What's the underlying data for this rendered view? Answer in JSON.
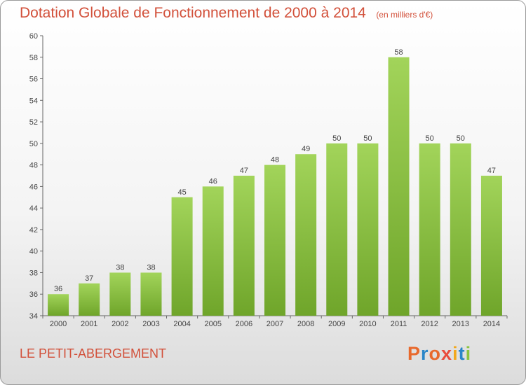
{
  "chart_data": {
    "type": "bar",
    "title": "Dotation Globale de Fonctionnement de 2000 à 2014",
    "subtitle": "(en milliers d'€)",
    "categories": [
      "2000",
      "2001",
      "2002",
      "2003",
      "2004",
      "2005",
      "2006",
      "2007",
      "2008",
      "2009",
      "2010",
      "2011",
      "2012",
      "2013",
      "2014"
    ],
    "values": [
      36,
      37,
      38,
      38,
      45,
      46,
      47,
      48,
      49,
      50,
      50,
      58,
      50,
      50,
      47
    ],
    "ylim": [
      34,
      60
    ],
    "yticks": [
      34,
      36,
      38,
      40,
      42,
      44,
      46,
      48,
      50,
      52,
      54,
      56,
      58,
      60
    ],
    "grid": false,
    "bar_color": "#8bc43f",
    "legend": "none"
  },
  "footer": {
    "commune": "LE PETIT-ABERGEMENT",
    "logo_text": "Proxiti"
  },
  "colors": {
    "title": "#d2503a",
    "logo": [
      "#e8692c",
      "#2a86c8",
      "#e8692c",
      "#e94b3c",
      "#f2a81d",
      "#2a86c8",
      "#8bc43f"
    ]
  }
}
